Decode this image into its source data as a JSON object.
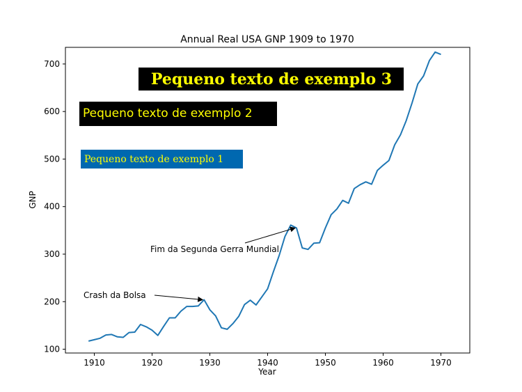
{
  "chart_data": {
    "type": "line",
    "title": "Annual Real USA GNP 1909 to 1970",
    "xlabel": "Year",
    "ylabel": "GNP",
    "xlim": [
      1905,
      1975
    ],
    "ylim": [
      92,
      735
    ],
    "xticks": [
      1910,
      1920,
      1930,
      1940,
      1950,
      1960,
      1970
    ],
    "yticks": [
      100,
      200,
      300,
      400,
      500,
      600,
      700
    ],
    "grid": false,
    "series": [
      {
        "color": "#1f77b4",
        "x": [
          1909,
          1910,
          1911,
          1912,
          1913,
          1914,
          1915,
          1916,
          1917,
          1918,
          1919,
          1920,
          1921,
          1922,
          1923,
          1924,
          1925,
          1926,
          1927,
          1928,
          1929,
          1930,
          1931,
          1932,
          1933,
          1934,
          1935,
          1936,
          1937,
          1938,
          1939,
          1940,
          1941,
          1942,
          1943,
          1944,
          1945,
          1946,
          1947,
          1948,
          1949,
          1950,
          1951,
          1952,
          1953,
          1954,
          1955,
          1956,
          1957,
          1958,
          1959,
          1960,
          1961,
          1962,
          1963,
          1964,
          1965,
          1966,
          1967,
          1968,
          1969,
          1970
        ],
        "y": [
          117,
          120,
          123,
          130,
          131,
          126,
          125,
          135,
          136,
          152,
          147,
          140,
          129,
          148,
          166,
          166,
          180,
          190,
          190,
          191,
          204,
          183,
          170,
          145,
          142,
          154,
          169,
          194,
          203,
          193,
          210,
          227,
          263,
          297,
          337,
          361,
          355,
          313,
          310,
          323,
          324,
          355,
          383,
          395,
          413,
          407,
          438,
          446,
          452,
          447,
          476,
          487,
          497,
          530,
          551,
          581,
          618,
          658,
          675,
          707,
          725,
          720
        ]
      }
    ],
    "annotations": [
      {
        "text": "Crash da Bolsa",
        "xy": [
          1929,
          204
        ],
        "xytext": [
          1909,
          204
        ]
      },
      {
        "text": "Fim da Segunda Gerra Mundial",
        "xy": [
          1945,
          355
        ],
        "xytext": [
          1920,
          300
        ]
      }
    ],
    "text_boxes": [
      {
        "text": "Pequeno texto de exemplo 1",
        "box_color": "#0068b0",
        "text_color": "#ffff00"
      },
      {
        "text": "Pequeno texto de exemplo 2",
        "box_color": "#000000",
        "text_color": "#ffff00"
      },
      {
        "text": "Pequeno texto de exemplo 3",
        "box_color": "#000000",
        "text_color": "#ffff00"
      }
    ]
  }
}
